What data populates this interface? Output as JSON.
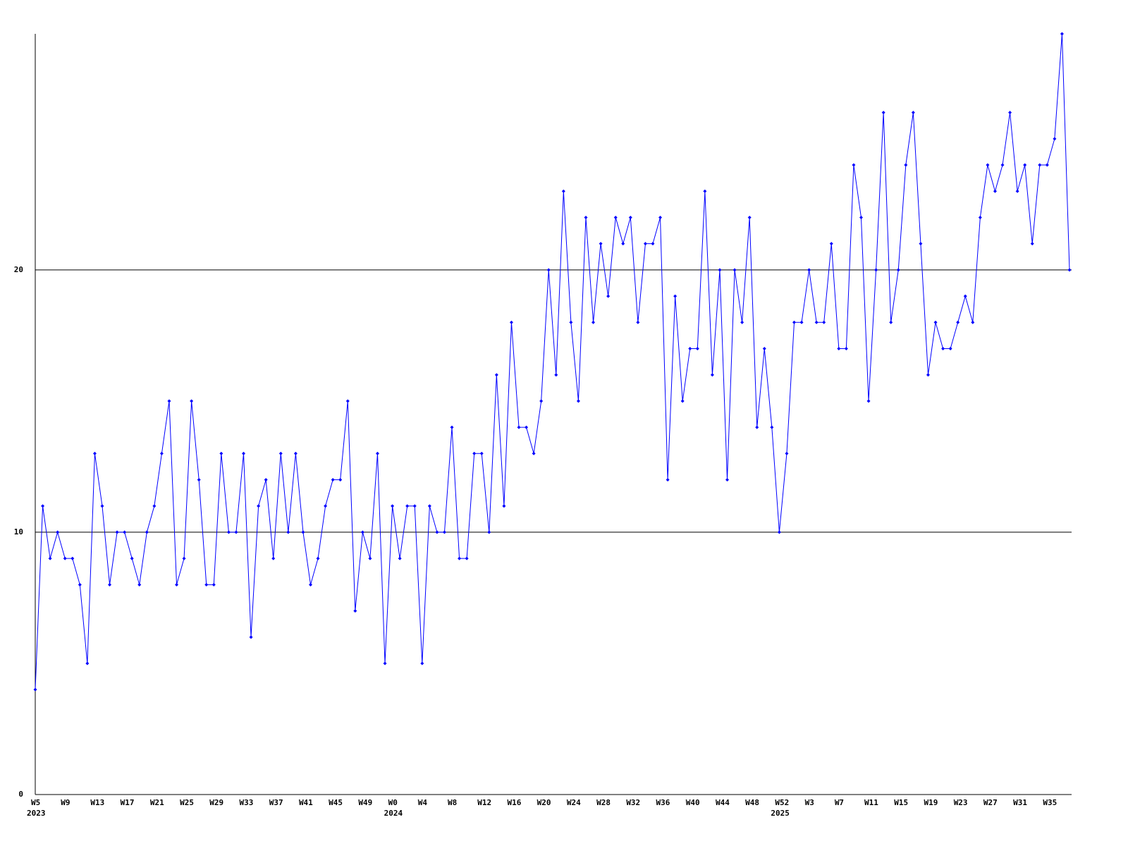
{
  "chart_data": {
    "type": "line",
    "categories": [
      "W5",
      null,
      null,
      null,
      "W9",
      null,
      null,
      null,
      "W13",
      null,
      null,
      null,
      "W17",
      null,
      null,
      null,
      "W21",
      null,
      null,
      null,
      "W25",
      null,
      null,
      null,
      "W29",
      null,
      null,
      null,
      "W33",
      null,
      null,
      null,
      "W37",
      null,
      null,
      null,
      "W41",
      null,
      null,
      null,
      "W45",
      null,
      null,
      null,
      "W49",
      null,
      null,
      null,
      "W0",
      null,
      null,
      null,
      "W4",
      null,
      null,
      null,
      "W8",
      null,
      null,
      null,
      "W12",
      null,
      null,
      null,
      "W16",
      null,
      null,
      null,
      "W20",
      null,
      null,
      null,
      "W24",
      null,
      null,
      null,
      "W28",
      null,
      null,
      null,
      "W32",
      null,
      null,
      null,
      "W36",
      null,
      null,
      null,
      "W40",
      null,
      null,
      null,
      "W44",
      null,
      null,
      null,
      "W48",
      null,
      null,
      null,
      "W52",
      null,
      null,
      null,
      "W3",
      null,
      null,
      null,
      "W7",
      null,
      null,
      null,
      "W11",
      null,
      null,
      null,
      "W15",
      null,
      null,
      null,
      "W19",
      null,
      null,
      null,
      "W23",
      null,
      null,
      null,
      "W27",
      null,
      null,
      null,
      "W31",
      null,
      null,
      null,
      "W35",
      null,
      null,
      null
    ],
    "category_years": [
      "2023",
      null,
      null,
      null,
      null,
      null,
      null,
      null,
      null,
      null,
      null,
      null,
      null,
      null,
      null,
      null,
      null,
      null,
      null,
      null,
      null,
      null,
      null,
      null,
      null,
      null,
      null,
      null,
      null,
      null,
      null,
      null,
      null,
      null,
      null,
      null,
      null,
      null,
      null,
      null,
      null,
      null,
      null,
      null,
      null,
      null,
      null,
      null,
      "2024",
      null,
      null,
      null,
      null,
      null,
      null,
      null,
      null,
      null,
      null,
      null,
      null,
      null,
      null,
      null,
      null,
      null,
      null,
      null,
      null,
      null,
      null,
      null,
      null,
      null,
      null,
      null,
      null,
      null,
      null,
      null,
      null,
      null,
      null,
      null,
      null,
      null,
      null,
      null,
      null,
      null,
      null,
      null,
      null,
      null,
      null,
      null,
      null,
      null,
      null,
      null,
      "2025",
      null,
      null,
      null,
      null,
      null,
      null,
      null,
      null,
      null,
      null,
      null,
      null,
      null,
      null,
      null,
      null,
      null,
      null,
      null,
      null,
      null,
      null,
      null,
      null,
      null,
      null,
      null,
      null,
      null,
      null,
      null,
      null,
      null,
      null,
      null,
      null,
      null,
      null,
      null
    ],
    "series": [
      {
        "color": "#0000ff",
        "values": [
          4,
          11,
          9,
          10,
          9,
          9,
          8,
          5,
          13,
          11,
          8,
          10,
          10,
          9,
          8,
          10,
          11,
          13,
          15,
          8,
          9,
          15,
          12,
          8,
          8,
          13,
          10,
          10,
          13,
          6,
          11,
          12,
          9,
          13,
          10,
          13,
          10,
          8,
          9,
          11,
          12,
          12,
          15,
          7,
          10,
          9,
          13,
          5,
          11,
          9,
          11,
          11,
          5,
          11,
          10,
          10,
          14,
          9,
          9,
          13,
          13,
          10,
          16,
          11,
          18,
          14,
          14,
          13,
          15,
          20,
          16,
          23,
          18,
          15,
          22,
          18,
          21,
          19,
          22,
          21,
          22,
          18,
          21,
          21,
          22,
          12,
          19,
          15,
          17,
          17,
          23,
          16,
          20,
          12,
          20,
          18,
          22,
          14,
          17,
          14,
          10,
          13,
          18,
          18,
          20,
          18,
          18,
          21,
          17,
          17,
          24,
          22,
          15,
          20,
          26,
          18,
          20,
          24,
          26,
          21,
          16,
          18,
          17,
          17,
          18,
          19,
          18,
          22,
          24,
          23,
          24,
          26,
          23,
          24,
          21,
          24,
          24,
          25,
          29,
          20
        ]
      }
    ],
    "ylim": [
      0,
      29
    ],
    "yticks": [
      0,
      10,
      20
    ],
    "grid": true
  }
}
